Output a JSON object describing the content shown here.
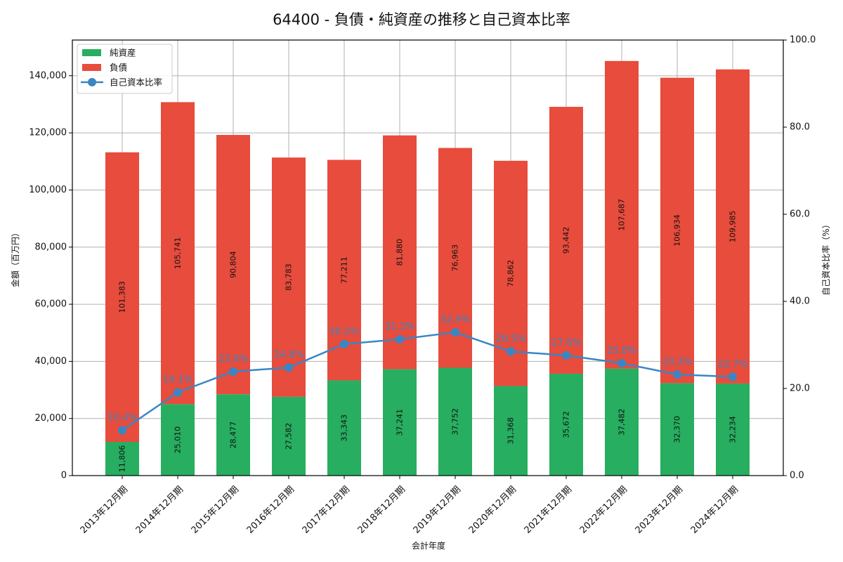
{
  "chart_data": {
    "type": "bar",
    "subtype": "stacked_bar_with_line_secondary_axis",
    "title": "64400 - 負債・純資産の推移と自己資本比率",
    "xlabel": "会計年度",
    "ylabel": "金額（百万円）",
    "y2label": "自己資本比率（%）",
    "categories": [
      "2013年12月期",
      "2014年12月期",
      "2015年12月期",
      "2016年12月期",
      "2017年12月期",
      "2018年12月期",
      "2019年12月期",
      "2020年12月期",
      "2021年12月期",
      "2022年12月期",
      "2023年12月期",
      "2024年12月期"
    ],
    "series": [
      {
        "name": "純資産",
        "type": "bar",
        "stack": "total",
        "color": "#27ae60",
        "values": [
          11806,
          25010,
          28477,
          27582,
          33343,
          37241,
          37752,
          31368,
          35672,
          37482,
          32370,
          32234
        ]
      },
      {
        "name": "負債",
        "type": "bar",
        "stack": "total",
        "color": "#e74c3c",
        "values": [
          101383,
          105741,
          90804,
          83783,
          77211,
          81880,
          76963,
          78862,
          93442,
          107687,
          106934,
          109985
        ]
      },
      {
        "name": "自己資本比率",
        "type": "line",
        "axis": "right",
        "color": "#3a86c4",
        "values": [
          10.4,
          19.1,
          23.9,
          24.8,
          30.2,
          31.3,
          32.9,
          28.5,
          27.6,
          25.8,
          23.2,
          22.7
        ]
      }
    ],
    "ylim": [
      0,
      152500
    ],
    "y2lim": [
      0,
      100
    ],
    "yticks": [
      "0",
      "20,000",
      "40,000",
      "60,000",
      "80,000",
      "100,000",
      "120,000",
      "140,000"
    ],
    "y2ticks": [
      "0.0",
      "20.0",
      "40.0",
      "60.0",
      "80.0",
      "100.0"
    ],
    "grid": true,
    "legend_position": "upper left",
    "legend": [
      "純資産",
      "負債",
      "自己資本比率"
    ]
  },
  "labels": {
    "title": "64400 - 負債・純資産の推移と自己資本比率",
    "xlabel": "会計年度",
    "ylabel": "金額（百万円）",
    "y2label": "自己資本比率（%）",
    "legend_equity": "純資産",
    "legend_debt": "負債",
    "legend_ratio": "自己資本比率"
  }
}
